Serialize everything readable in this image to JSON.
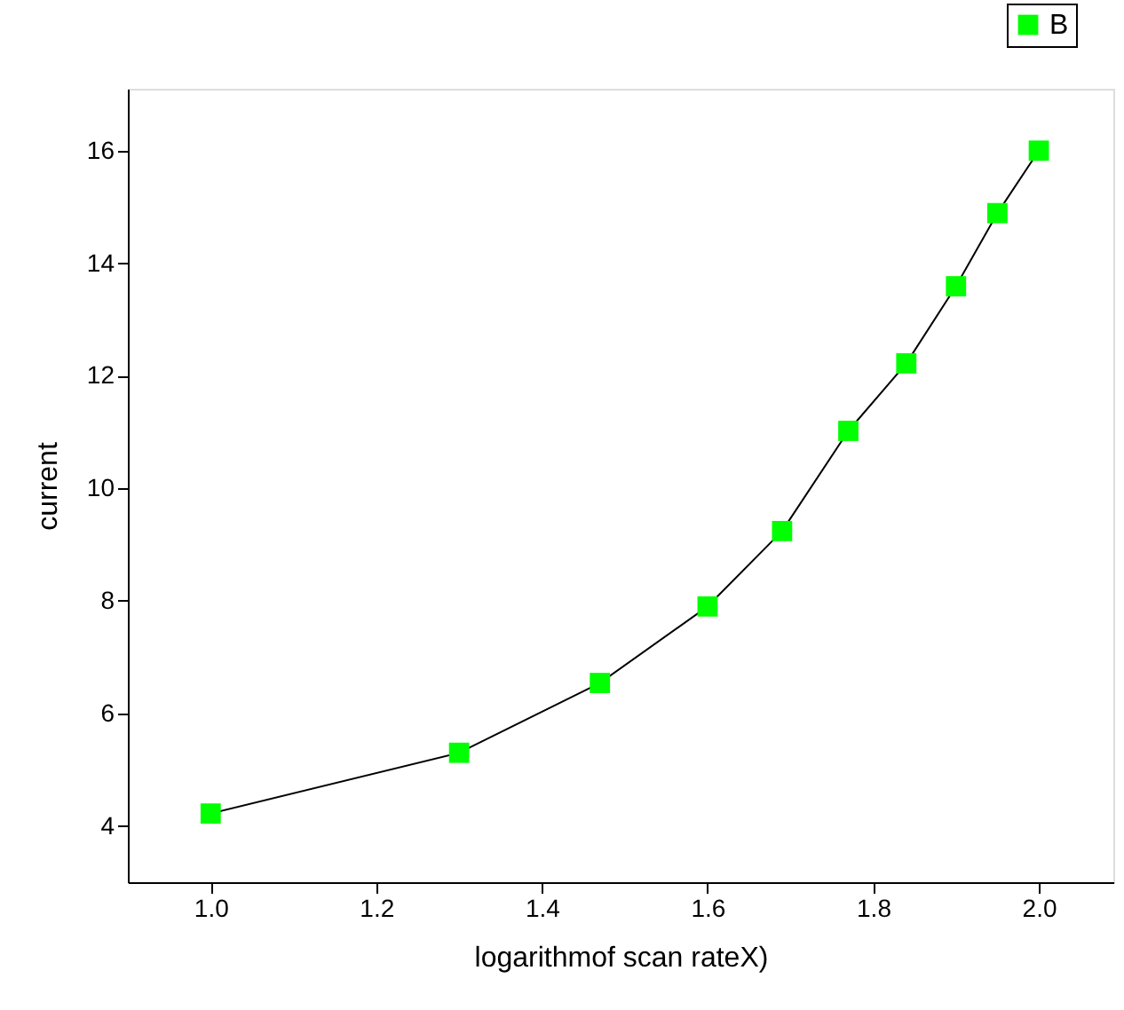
{
  "chart_data": {
    "type": "line",
    "xlabel": "logarithmof scan rateX)",
    "ylabel": "current",
    "x": [
      1.0,
      1.3,
      1.47,
      1.6,
      1.69,
      1.77,
      1.84,
      1.9,
      1.95,
      2.0
    ],
    "series": [
      {
        "name": "B",
        "color": "#00ff00",
        "values": [
          4.22,
          5.3,
          6.54,
          7.9,
          9.24,
          11.02,
          12.22,
          13.59,
          14.89,
          16.0
        ]
      }
    ],
    "xlim": [
      0.9,
      2.09
    ],
    "ylim": [
      3,
      17.1
    ],
    "xticks": [
      {
        "value": 1.0,
        "label": "1.0"
      },
      {
        "value": 1.2,
        "label": "1.2"
      },
      {
        "value": 1.4,
        "label": "1.4"
      },
      {
        "value": 1.6,
        "label": "1.6"
      },
      {
        "value": 1.8,
        "label": "1.8"
      },
      {
        "value": 2.0,
        "label": "2.0"
      }
    ],
    "yticks": [
      4,
      6,
      8,
      10,
      12,
      14,
      16
    ],
    "marker": "square",
    "line_style": "solid",
    "grid": false,
    "legend": "top right"
  }
}
